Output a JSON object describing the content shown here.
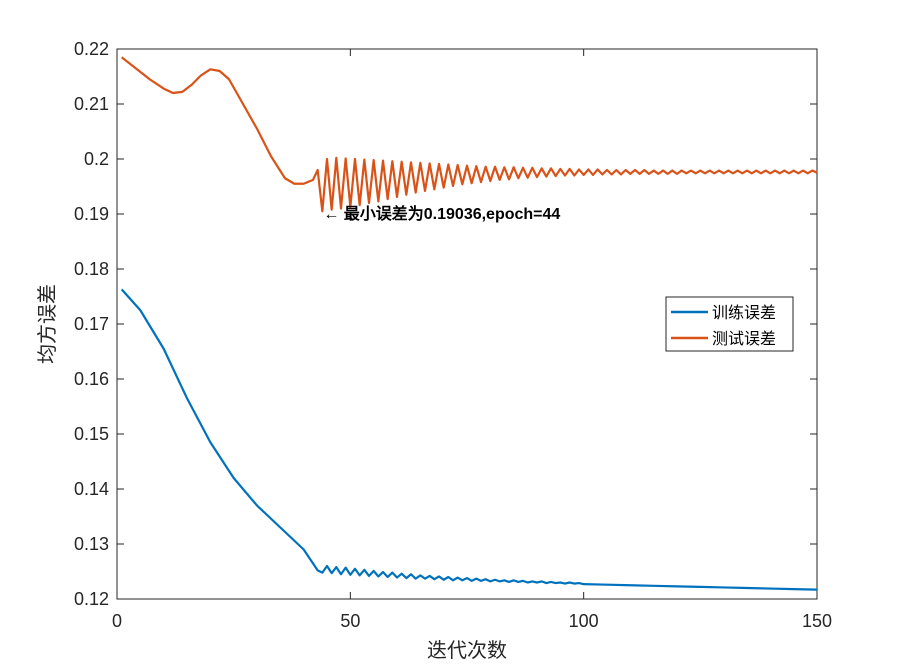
{
  "chart_data": {
    "type": "line",
    "xlabel": "迭代次数",
    "ylabel": "均方误差",
    "xlim": [
      0,
      150
    ],
    "ylim": [
      0.12,
      0.22
    ],
    "xticks": [
      0,
      50,
      100,
      150
    ],
    "xtick_labels": [
      "0",
      "50",
      "100",
      "150"
    ],
    "yticks": [
      0.12,
      0.13,
      0.14,
      0.15,
      0.16,
      0.17,
      0.18,
      0.19,
      0.2,
      0.21,
      0.22
    ],
    "ytick_labels": [
      "0.12",
      "0.13",
      "0.14",
      "0.15",
      "0.16",
      "0.17",
      "0.18",
      "0.19",
      "0.2",
      "0.21",
      "0.22"
    ],
    "grid": false,
    "legend_position": "right",
    "series": [
      {
        "name": "训练误差",
        "color": "#0072BD",
        "points": [
          [
            1,
            0.1763
          ],
          [
            5,
            0.1725
          ],
          [
            10,
            0.1655
          ],
          [
            15,
            0.1565
          ],
          [
            20,
            0.1485
          ],
          [
            25,
            0.142
          ],
          [
            30,
            0.137
          ],
          [
            35,
            0.133
          ],
          [
            40,
            0.129
          ],
          [
            43,
            0.1252
          ],
          [
            44,
            0.1248
          ],
          [
            45,
            0.126
          ],
          [
            46,
            0.1247
          ],
          [
            47,
            0.1258
          ],
          [
            48,
            0.1245
          ],
          [
            49,
            0.1257
          ],
          [
            50,
            0.1244
          ],
          [
            51,
            0.1255
          ],
          [
            52,
            0.1243
          ],
          [
            53,
            0.1253
          ],
          [
            54,
            0.1242
          ],
          [
            55,
            0.1251
          ],
          [
            56,
            0.1241
          ],
          [
            57,
            0.1249
          ],
          [
            58,
            0.124
          ],
          [
            59,
            0.1248
          ],
          [
            60,
            0.1239
          ],
          [
            61,
            0.1246
          ],
          [
            62,
            0.1238
          ],
          [
            63,
            0.1245
          ],
          [
            64,
            0.1237
          ],
          [
            65,
            0.1243
          ],
          [
            66,
            0.1237
          ],
          [
            67,
            0.1242
          ],
          [
            68,
            0.1236
          ],
          [
            69,
            0.1241
          ],
          [
            70,
            0.1235
          ],
          [
            71,
            0.124
          ],
          [
            72,
            0.1234
          ],
          [
            73,
            0.1239
          ],
          [
            74,
            0.1234
          ],
          [
            75,
            0.1238
          ],
          [
            76,
            0.1233
          ],
          [
            77,
            0.1237
          ],
          [
            78,
            0.1233
          ],
          [
            79,
            0.1236
          ],
          [
            80,
            0.1232
          ],
          [
            81,
            0.1235
          ],
          [
            82,
            0.1232
          ],
          [
            83,
            0.1234
          ],
          [
            84,
            0.1231
          ],
          [
            85,
            0.1234
          ],
          [
            86,
            0.1231
          ],
          [
            87,
            0.1233
          ],
          [
            88,
            0.123
          ],
          [
            89,
            0.1232
          ],
          [
            90,
            0.123
          ],
          [
            91,
            0.1232
          ],
          [
            92,
            0.1229
          ],
          [
            93,
            0.1231
          ],
          [
            94,
            0.1229
          ],
          [
            95,
            0.123
          ],
          [
            96,
            0.1228
          ],
          [
            97,
            0.123
          ],
          [
            98,
            0.1228
          ],
          [
            99,
            0.1229
          ],
          [
            100,
            0.1227
          ],
          [
            105,
            0.1226
          ],
          [
            110,
            0.1225
          ],
          [
            115,
            0.1224
          ],
          [
            120,
            0.1223
          ],
          [
            125,
            0.1222
          ],
          [
            130,
            0.1221
          ],
          [
            135,
            0.122
          ],
          [
            140,
            0.1219
          ],
          [
            145,
            0.1218
          ],
          [
            150,
            0.1217
          ]
        ]
      },
      {
        "name": "测试误差",
        "color": "#D95319",
        "points": [
          [
            1,
            0.2185
          ],
          [
            4,
            0.2165
          ],
          [
            7,
            0.2145
          ],
          [
            10,
            0.2128
          ],
          [
            12,
            0.212
          ],
          [
            14,
            0.2122
          ],
          [
            16,
            0.2135
          ],
          [
            18,
            0.2152
          ],
          [
            20,
            0.2163
          ],
          [
            22,
            0.216
          ],
          [
            24,
            0.2145
          ],
          [
            27,
            0.21
          ],
          [
            30,
            0.2055
          ],
          [
            33,
            0.2005
          ],
          [
            36,
            0.1965
          ],
          [
            38,
            0.1955
          ],
          [
            40,
            0.1955
          ],
          [
            42,
            0.1962
          ],
          [
            43,
            0.198
          ],
          [
            44,
            0.1905
          ],
          [
            45,
            0.2
          ],
          [
            46,
            0.1908
          ],
          [
            47,
            0.2002
          ],
          [
            48,
            0.191
          ],
          [
            49,
            0.2001
          ],
          [
            50,
            0.1913
          ],
          [
            51,
            0.2
          ],
          [
            52,
            0.1916
          ],
          [
            53,
            0.1999
          ],
          [
            54,
            0.192
          ],
          [
            55,
            0.1998
          ],
          [
            56,
            0.1923
          ],
          [
            57,
            0.1997
          ],
          [
            58,
            0.1927
          ],
          [
            59,
            0.1996
          ],
          [
            60,
            0.1931
          ],
          [
            61,
            0.1995
          ],
          [
            62,
            0.1935
          ],
          [
            63,
            0.1994
          ],
          [
            64,
            0.1939
          ],
          [
            65,
            0.1993
          ],
          [
            66,
            0.1942
          ],
          [
            67,
            0.1992
          ],
          [
            68,
            0.1945
          ],
          [
            69,
            0.1991
          ],
          [
            70,
            0.1948
          ],
          [
            71,
            0.199
          ],
          [
            72,
            0.1951
          ],
          [
            73,
            0.1989
          ],
          [
            74,
            0.1954
          ],
          [
            75,
            0.1988
          ],
          [
            76,
            0.1956
          ],
          [
            77,
            0.1987
          ],
          [
            78,
            0.1958
          ],
          [
            79,
            0.1986
          ],
          [
            80,
            0.196
          ],
          [
            81,
            0.1986
          ],
          [
            82,
            0.1962
          ],
          [
            83,
            0.1985
          ],
          [
            84,
            0.1963
          ],
          [
            85,
            0.1985
          ],
          [
            86,
            0.1965
          ],
          [
            87,
            0.1984
          ],
          [
            88,
            0.1966
          ],
          [
            89,
            0.1984
          ],
          [
            90,
            0.1967
          ],
          [
            91,
            0.1983
          ],
          [
            92,
            0.1968
          ],
          [
            93,
            0.1983
          ],
          [
            94,
            0.1969
          ],
          [
            95,
            0.1982
          ],
          [
            96,
            0.197
          ],
          [
            97,
            0.1982
          ],
          [
            98,
            0.197
          ],
          [
            99,
            0.1981
          ],
          [
            100,
            0.1971
          ],
          [
            101,
            0.1981
          ],
          [
            102,
            0.1971
          ],
          [
            103,
            0.1981
          ],
          [
            104,
            0.1972
          ],
          [
            105,
            0.198
          ],
          [
            106,
            0.1972
          ],
          [
            107,
            0.198
          ],
          [
            108,
            0.1972
          ],
          [
            109,
            0.198
          ],
          [
            110,
            0.1973
          ],
          [
            111,
            0.198
          ],
          [
            112,
            0.1973
          ],
          [
            113,
            0.198
          ],
          [
            114,
            0.1973
          ],
          [
            115,
            0.1979
          ],
          [
            116,
            0.1973
          ],
          [
            117,
            0.1979
          ],
          [
            118,
            0.1973
          ],
          [
            119,
            0.1979
          ],
          [
            120,
            0.1973
          ],
          [
            121,
            0.1979
          ],
          [
            122,
            0.1974
          ],
          [
            123,
            0.1979
          ],
          [
            124,
            0.1974
          ],
          [
            125,
            0.1979
          ],
          [
            126,
            0.1974
          ],
          [
            127,
            0.1979
          ],
          [
            128,
            0.1974
          ],
          [
            129,
            0.1979
          ],
          [
            130,
            0.1974
          ],
          [
            131,
            0.1979
          ],
          [
            132,
            0.1974
          ],
          [
            133,
            0.1979
          ],
          [
            134,
            0.1974
          ],
          [
            135,
            0.1979
          ],
          [
            136,
            0.1974
          ],
          [
            137,
            0.1979
          ],
          [
            138,
            0.1974
          ],
          [
            139,
            0.1979
          ],
          [
            140,
            0.1974
          ],
          [
            141,
            0.1979
          ],
          [
            142,
            0.1974
          ],
          [
            143,
            0.1979
          ],
          [
            144,
            0.1974
          ],
          [
            145,
            0.1979
          ],
          [
            146,
            0.1974
          ],
          [
            147,
            0.1979
          ],
          [
            148,
            0.1974
          ],
          [
            149,
            0.1979
          ],
          [
            150,
            0.1975
          ]
        ]
      }
    ],
    "annotations": [
      {
        "text": "← 最小误差为0.19036,epoch=44",
        "x": 44,
        "y": 0.19036
      }
    ]
  }
}
